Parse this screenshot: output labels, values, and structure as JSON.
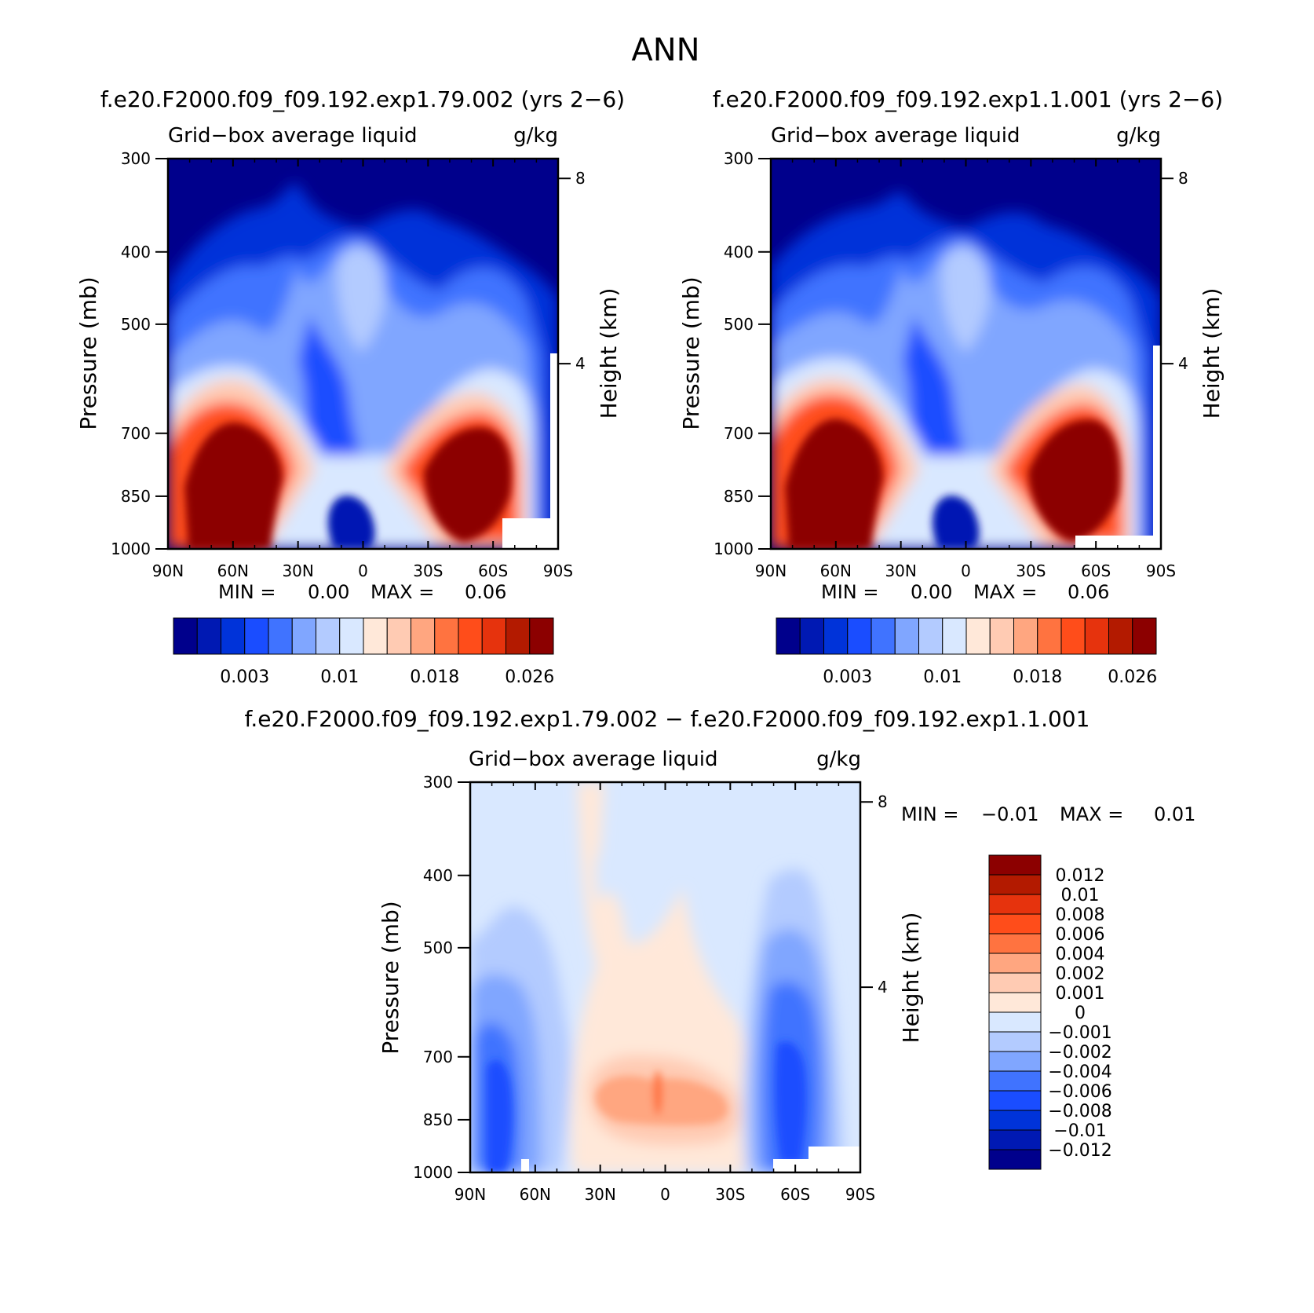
{
  "page_title": "ANN",
  "chart_data": [
    {
      "type": "heatmap",
      "id": "panel-left",
      "title": "f.e20.F2000.f09_f09.192.exp1.79.002 (yrs 2−6)",
      "subtitle_left": "Grid−box average liquid",
      "subtitle_right": "g/kg",
      "xlabel": "",
      "ylabel": "Pressure (mb)",
      "y2label": "Height (km)",
      "x_ticks": [
        "90N",
        "60N",
        "30N",
        "0",
        "30S",
        "60S",
        "90S"
      ],
      "y_ticks": [
        300,
        400,
        500,
        700,
        850,
        1000
      ],
      "y2_ticks": [
        8,
        4
      ],
      "ylim": [
        300,
        1000
      ],
      "stats": {
        "min_label": "MIN =",
        "min_value": "0.00",
        "max_label": "MAX =",
        "max_value": "0.06"
      },
      "colorbar": {
        "orientation": "horizontal",
        "colors": [
          "#00008c",
          "#0019b3",
          "#0033d9",
          "#1a4dff",
          "#4073ff",
          "#80a6ff",
          "#b3cbff",
          "#d9e8ff",
          "#ffe8d9",
          "#ffcbb3",
          "#ffa680",
          "#ff7340",
          "#ff4d1a",
          "#e6330d",
          "#b31a00",
          "#8c0000"
        ],
        "labels": [
          "0.003",
          "0.01",
          "0.018",
          "0.026"
        ]
      }
    },
    {
      "type": "heatmap",
      "id": "panel-right",
      "title": "f.e20.F2000.f09_f09.192.exp1.1.001 (yrs 2−6)",
      "subtitle_left": "Grid−box average liquid",
      "subtitle_right": "g/kg",
      "xlabel": "",
      "ylabel": "Pressure (mb)",
      "y2label": "Height (km)",
      "x_ticks": [
        "90N",
        "60N",
        "30N",
        "0",
        "30S",
        "60S",
        "90S"
      ],
      "y_ticks": [
        300,
        400,
        500,
        700,
        850,
        1000
      ],
      "y2_ticks": [
        8,
        4
      ],
      "ylim": [
        300,
        1000
      ],
      "stats": {
        "min_label": "MIN =",
        "min_value": "0.00",
        "max_label": "MAX =",
        "max_value": "0.06"
      },
      "colorbar": {
        "orientation": "horizontal",
        "colors": [
          "#00008c",
          "#0019b3",
          "#0033d9",
          "#1a4dff",
          "#4073ff",
          "#80a6ff",
          "#b3cbff",
          "#d9e8ff",
          "#ffe8d9",
          "#ffcbb3",
          "#ffa680",
          "#ff7340",
          "#ff4d1a",
          "#e6330d",
          "#b31a00",
          "#8c0000"
        ],
        "labels": [
          "0.003",
          "0.01",
          "0.018",
          "0.026"
        ]
      }
    },
    {
      "type": "heatmap",
      "id": "panel-diff",
      "title": "f.e20.F2000.f09_f09.192.exp1.79.002 − f.e20.F2000.f09_f09.192.exp1.1.001",
      "subtitle_left": "Grid−box average liquid",
      "subtitle_right": "g/kg",
      "xlabel": "",
      "ylabel": "Pressure (mb)",
      "y2label": "Height (km)",
      "x_ticks": [
        "90N",
        "60N",
        "30N",
        "0",
        "30S",
        "60S",
        "90S"
      ],
      "y_ticks": [
        300,
        400,
        500,
        700,
        850,
        1000
      ],
      "y2_ticks": [
        8,
        4
      ],
      "ylim": [
        300,
        1000
      ],
      "stats": {
        "min_label": "MIN =",
        "min_value": "−0.01",
        "max_label": "MAX =",
        "max_value": "0.01"
      },
      "colorbar": {
        "orientation": "vertical",
        "colors": [
          "#8c0000",
          "#b31a00",
          "#e6330d",
          "#ff4d1a",
          "#ff7340",
          "#ffa680",
          "#ffcbb3",
          "#ffe8d9",
          "#d9e8ff",
          "#b3cbff",
          "#80a6ff",
          "#4073ff",
          "#1a4dff",
          "#0033d9",
          "#0019b3",
          "#00008c"
        ],
        "labels": [
          "0.012",
          "0.01",
          "0.008",
          "0.006",
          "0.004",
          "0.002",
          "0.001",
          "0",
          "−0.001",
          "−0.002",
          "−0.004",
          "−0.006",
          "−0.008",
          "−0.01",
          "−0.012"
        ]
      }
    }
  ]
}
